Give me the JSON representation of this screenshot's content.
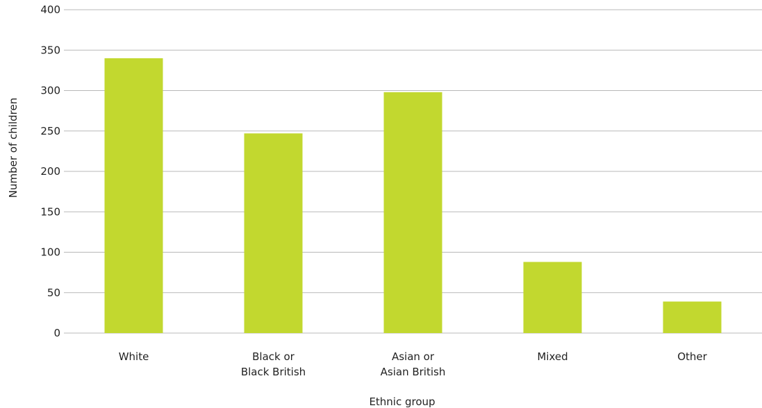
{
  "chart_data": {
    "type": "bar",
    "categories": [
      [
        "White"
      ],
      [
        "Black or",
        "Black British"
      ],
      [
        "Asian or",
        "Asian British"
      ],
      [
        "Mixed"
      ],
      [
        "Other"
      ]
    ],
    "values": [
      340,
      247,
      298,
      88,
      39
    ],
    "xlabel": "Ethnic group",
    "ylabel": "Number of children",
    "ylim": [
      0,
      400
    ],
    "yticks": [
      0,
      50,
      100,
      150,
      200,
      250,
      300,
      350,
      400
    ],
    "grid": true,
    "colors": {
      "bar": "#c2d82f",
      "grid": "#b8b8b8",
      "text": "#222222"
    }
  }
}
